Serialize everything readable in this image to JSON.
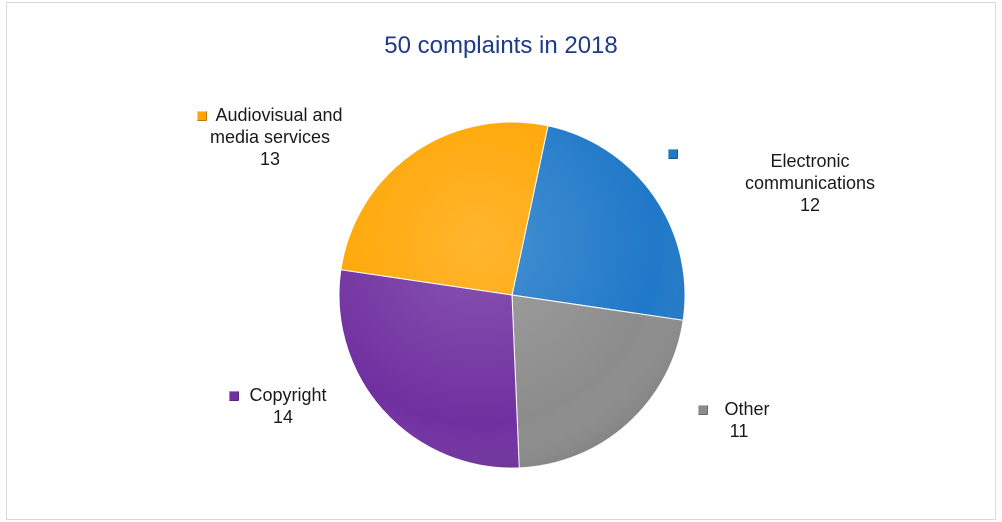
{
  "chart_data": {
    "type": "pie",
    "title": "50 complaints in 2018",
    "slices": [
      {
        "label_lines": [
          "Electronic",
          "communications"
        ],
        "value": 12,
        "color": "#1f78c8"
      },
      {
        "label_lines": [
          "Other"
        ],
        "value": 11,
        "color": "#8c8c8c"
      },
      {
        "label_lines": [
          "Copyright"
        ],
        "value": 14,
        "color": "#7030a0"
      },
      {
        "label_lines": [
          "Audiovisual and",
          "media services"
        ],
        "value": 13,
        "color": "#ffa500"
      }
    ],
    "legend": "none",
    "data_labels": "outside"
  }
}
